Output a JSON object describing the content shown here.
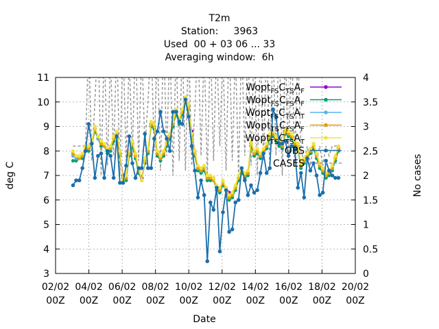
{
  "header": {
    "title": "T2m",
    "station_line": "Station:     3963",
    "used_line": "Used  00 + 03 06 ... 33",
    "window_line": "Averaging window:  6h"
  },
  "chart_data": {
    "type": "line",
    "xlabel": "Date",
    "ylabel": "deg C",
    "y2label": "No cases",
    "xlim": [
      0,
      18
    ],
    "ylim": [
      3,
      11
    ],
    "y2lim": [
      0,
      4
    ],
    "grid": true,
    "legend_position": "top-right",
    "x_ticks": [
      {
        "day": 0,
        "line1": "02/02",
        "line2": "00Z"
      },
      {
        "day": 2,
        "line1": "04/02",
        "line2": "00Z"
      },
      {
        "day": 4,
        "line1": "06/02",
        "line2": "00Z"
      },
      {
        "day": 6,
        "line1": "08/02",
        "line2": "00Z"
      },
      {
        "day": 8,
        "line1": "10/02",
        "line2": "00Z"
      },
      {
        "day": 10,
        "line1": "12/02",
        "line2": "00Z"
      },
      {
        "day": 12,
        "line1": "14/02",
        "line2": "00Z"
      },
      {
        "day": 14,
        "line1": "16/02",
        "line2": "00Z"
      },
      {
        "day": 16,
        "line1": "18/02",
        "line2": "00Z"
      },
      {
        "day": 18,
        "line1": "20/02",
        "line2": "00Z"
      }
    ],
    "y_ticks": [
      "3",
      "4",
      "5",
      "6",
      "7",
      "8",
      "9",
      "10",
      "11"
    ],
    "y2_ticks": [
      "0",
      "0.5",
      "1",
      "1.5",
      "2",
      "2.5",
      "3",
      "3.5",
      "4"
    ],
    "obs_color": "#1a6eab",
    "series": [
      {
        "name": "Wopt_FS_CTS_AF",
        "label_main": "Wopt",
        "label_sub": "FS",
        "label_main2": "C",
        "label_sub2": "TS",
        "label_main3": "A",
        "label_sub3": "F",
        "color": "#9400d3",
        "values": [
          7.9,
          7.7,
          7.7,
          7.8,
          8.2,
          8.2,
          8.4,
          8.9,
          8.6,
          8.3,
          8.2,
          8.0,
          8.1,
          8.5,
          8.7,
          7.9,
          7.0,
          6.9,
          7.9,
          8.3,
          7.8,
          7.2,
          6.9,
          7.6,
          8.0,
          9.1,
          9.0,
          7.9,
          7.7,
          7.9,
          8.3,
          8.6,
          9.1,
          9.6,
          9.2,
          9.6,
          10.1,
          9.8,
          8.8,
          8.0,
          7.3,
          7.2,
          7.3,
          6.9,
          6.9,
          6.9,
          6.5,
          6.4,
          6.7,
          6.5,
          6.3,
          6.2,
          6.5,
          6.9,
          7.2,
          7.0,
          7.1,
          8.3,
          7.9,
          8.0,
          7.8,
          8.0,
          8.2,
          8.6,
          8.7,
          8.5,
          8.3,
          8.2,
          8.8,
          8.7,
          8.6,
          8.3,
          8.2,
          7.4,
          7.6,
          7.8,
          8.0,
          8.2,
          7.8,
          7.4,
          7.2,
          7.0,
          7.1,
          7.3,
          7.7,
          8.1
        ]
      },
      {
        "name": "Wopt_FS_CFS_AF",
        "label_main": "Wopt",
        "label_sub": "FS",
        "label_main2": "C",
        "label_sub2": "FS",
        "label_main3": "A",
        "label_sub3": "F",
        "color": "#009e73",
        "values": [
          7.6,
          7.6,
          7.7,
          7.7,
          8.1,
          8.0,
          8.3,
          8.8,
          8.5,
          8.2,
          8.2,
          7.9,
          8.0,
          8.4,
          8.6,
          7.8,
          6.9,
          6.8,
          7.8,
          8.2,
          7.7,
          7.1,
          6.8,
          7.5,
          7.9,
          9.0,
          8.9,
          7.8,
          7.6,
          7.8,
          8.2,
          8.5,
          9.0,
          9.5,
          9.1,
          9.5,
          10.0,
          9.7,
          8.6,
          7.8,
          7.2,
          7.1,
          7.2,
          6.8,
          6.8,
          6.8,
          6.4,
          6.3,
          6.6,
          6.4,
          6.0,
          6.1,
          6.4,
          6.8,
          7.1,
          6.9,
          7.0,
          8.2,
          7.8,
          7.9,
          7.7,
          7.9,
          8.1,
          8.5,
          8.6,
          8.4,
          8.2,
          8.1,
          8.7,
          8.6,
          8.5,
          8.2,
          8.1,
          7.3,
          7.5,
          7.7,
          7.9,
          8.1,
          7.7,
          7.3,
          7.1,
          6.9,
          7.0,
          7.2,
          7.6,
          8.0
        ]
      },
      {
        "name": "Wopt_FS_CTS_AT",
        "label_main": "Wopt",
        "label_sub": "FS",
        "label_main2": "C",
        "label_sub2": "TS",
        "label_main3": "A",
        "label_sub3": "T",
        "color": "#56b4e9",
        "values": [
          7.8,
          7.7,
          7.7,
          7.8,
          8.1,
          8.1,
          8.3,
          8.9,
          8.5,
          8.3,
          8.2,
          8.0,
          8.1,
          8.5,
          8.7,
          7.9,
          6.9,
          6.9,
          7.9,
          8.3,
          7.8,
          7.2,
          6.8,
          7.6,
          8.0,
          9.1,
          9.0,
          7.9,
          7.7,
          7.9,
          8.3,
          8.6,
          9.1,
          9.6,
          9.2,
          9.6,
          10.1,
          9.8,
          8.7,
          7.9,
          7.3,
          7.2,
          7.3,
          6.9,
          6.9,
          6.8,
          6.5,
          6.4,
          6.7,
          6.4,
          6.1,
          6.2,
          6.5,
          6.9,
          7.2,
          7.0,
          7.1,
          8.3,
          7.9,
          8.0,
          7.8,
          8.0,
          8.2,
          8.6,
          8.7,
          8.5,
          8.3,
          8.2,
          8.8,
          8.7,
          8.6,
          8.3,
          8.2,
          7.4,
          7.6,
          7.8,
          8.0,
          8.2,
          7.8,
          7.4,
          7.2,
          7.0,
          7.1,
          7.3,
          7.7,
          8.1
        ]
      },
      {
        "name": "Wopt_TS_CFS_AF",
        "label_main": "Wopt",
        "label_sub": "TS",
        "label_main2": "C",
        "label_sub2": "FS",
        "label_main3": "A",
        "label_sub3": "F",
        "color": "#e69f00",
        "values": [
          7.9,
          7.8,
          7.7,
          7.8,
          8.1,
          8.1,
          8.3,
          8.9,
          8.6,
          8.3,
          8.2,
          8.0,
          8.1,
          8.5,
          8.7,
          7.9,
          6.8,
          6.9,
          7.9,
          8.3,
          7.8,
          7.2,
          6.8,
          7.6,
          8.0,
          9.1,
          9.0,
          7.9,
          7.7,
          7.9,
          8.3,
          8.6,
          9.1,
          9.6,
          9.2,
          9.6,
          10.1,
          9.8,
          8.7,
          7.9,
          7.3,
          7.2,
          7.3,
          6.9,
          6.9,
          6.8,
          6.5,
          6.4,
          6.7,
          6.4,
          6.1,
          6.2,
          6.5,
          6.9,
          7.2,
          7.0,
          7.1,
          8.3,
          7.9,
          8.0,
          7.8,
          8.0,
          8.2,
          8.6,
          8.7,
          8.5,
          8.3,
          8.2,
          8.8,
          8.7,
          8.6,
          8.3,
          8.2,
          7.4,
          7.6,
          7.8,
          8.0,
          8.2,
          7.8,
          7.4,
          7.2,
          7.0,
          7.1,
          7.3,
          7.7,
          8.1
        ]
      },
      {
        "name": "Wopt_TS_CTS_AT",
        "label_main": "Wopt",
        "label_sub": "TS",
        "label_main2": "C",
        "label_sub2": "TS",
        "label_main3": "A",
        "label_sub3": "T",
        "color": "#f0e442",
        "values": [
          8.0,
          7.8,
          7.8,
          7.9,
          8.2,
          8.2,
          8.4,
          9.0,
          8.6,
          8.4,
          8.3,
          8.1,
          8.2,
          8.6,
          8.8,
          8.0,
          6.8,
          7.0,
          8.0,
          8.4,
          7.9,
          7.3,
          6.8,
          7.7,
          8.1,
          9.2,
          9.1,
          8.0,
          7.8,
          8.0,
          8.4,
          8.7,
          9.2,
          9.7,
          9.3,
          9.7,
          10.2,
          9.9,
          8.7,
          8.0,
          7.4,
          7.3,
          7.4,
          7.0,
          7.0,
          6.9,
          6.6,
          6.5,
          6.8,
          6.5,
          6.2,
          6.3,
          6.6,
          7.0,
          7.3,
          7.1,
          7.2,
          8.4,
          8.0,
          8.1,
          7.9,
          8.1,
          8.3,
          8.7,
          8.8,
          8.6,
          8.4,
          8.3,
          8.9,
          8.8,
          8.7,
          8.4,
          8.3,
          7.5,
          7.7,
          7.9,
          8.1,
          8.3,
          7.9,
          7.5,
          7.3,
          7.1,
          7.2,
          7.4,
          7.8,
          8.2
        ]
      },
      {
        "name": "OBS",
        "label_main": "OBS",
        "color": "#1a6eab",
        "values": [
          6.6,
          6.8,
          6.8,
          7.3,
          8.0,
          9.1,
          8.3,
          6.9,
          7.8,
          7.9,
          6.9,
          8.0,
          7.8,
          6.9,
          8.6,
          6.7,
          6.7,
          7.4,
          8.6,
          7.5,
          6.9,
          7.3,
          7.3,
          8.7,
          7.3,
          7.3,
          8.5,
          8.8,
          9.6,
          8.8,
          8.5,
          8.0,
          9.6,
          9.6,
          9.2,
          9.1,
          10.1,
          9.4,
          8.2,
          7.2,
          6.1,
          6.8,
          6.2,
          3.5,
          5.9,
          5.6,
          6.5,
          3.9,
          5.5,
          6.4,
          4.7,
          4.8,
          5.9,
          6.0,
          7.3,
          6.8,
          6.2,
          6.6,
          6.3,
          6.4,
          7.1,
          7.9,
          7.1,
          7.3,
          9.7,
          9.4,
          8.3,
          8.3,
          8.4,
          7.8,
          8.2,
          8.1,
          6.5,
          7.1,
          6.1,
          7.7,
          7.2,
          7.5,
          7.0,
          6.2,
          6.3,
          7.6,
          7.2,
          7.0,
          6.9,
          6.9
        ]
      },
      {
        "name": "CASES",
        "label_main": "CASES",
        "color": "#999999",
        "values": [
          2.6,
          2.6,
          2.6,
          2.6,
          2.6,
          4.8,
          2.3,
          3.5,
          4.9,
          2.0,
          4.7,
          2.2,
          4.4,
          2.4,
          4.8,
          2.0,
          4.8,
          2.3,
          4.4,
          2.4,
          4.9,
          2.3,
          4.6,
          2.6,
          3.5,
          4.8,
          2.5,
          4.6,
          2.1,
          4.9,
          2.4,
          4.8,
          2.0,
          4.6,
          2.3,
          4.7,
          2.1,
          4.9,
          2.2,
          3.3,
          4.8,
          2.4,
          4.6,
          2.0,
          4.8,
          2.3,
          4.7,
          2.6,
          4.5,
          2.1,
          4.9,
          2.3,
          4.6,
          2.0,
          4.8,
          2.4,
          4.7,
          2.2,
          4.9,
          2.0,
          4.6,
          2.3,
          4.8,
          2.1,
          4.7,
          2.4,
          4.9,
          2.0,
          4.6,
          2.3,
          4.8,
          2.2,
          4.6,
          2.5,
          2.3,
          2.6,
          2.2,
          2.6,
          2.3,
          2.6,
          2.2,
          2.6,
          2.4,
          2.6,
          2.6,
          2.6
        ]
      }
    ],
    "x_start": 1.05,
    "x_step": 0.1875
  }
}
